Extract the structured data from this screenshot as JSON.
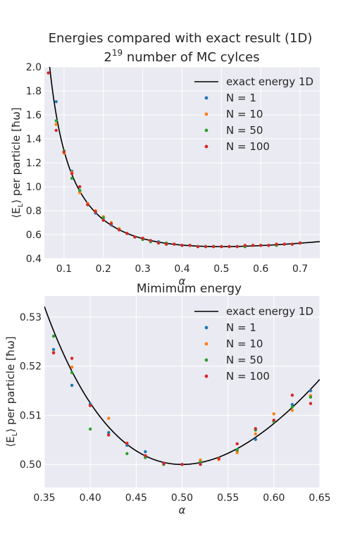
{
  "figure": {
    "title_line1": "Energies compared with exact result (1D)",
    "title_line2_base": "2",
    "title_line2_exp": "19",
    "title_line2_rest": " number of MC cylces"
  },
  "colors": {
    "exact": "#000000",
    "N = 1": "#1f77b4",
    "N = 10": "#ff7f0e",
    "N = 50": "#2ca02c",
    "N = 100": "#d62728",
    "axes_bg": "#eaeaf2",
    "grid": "#ffffff"
  },
  "chart_data": [
    {
      "type": "scatter",
      "title": "",
      "xlabel": "α",
      "ylabel": "⟨E_L⟩ per particle [ħω]",
      "xlim": [
        0.05,
        0.75
      ],
      "ylim": [
        0.4,
        2.0
      ],
      "xticks": [
        "0.1",
        "0.2",
        "0.3",
        "0.4",
        "0.5",
        "0.6",
        "0.7"
      ],
      "yticks": [
        "0.4",
        "0.6",
        "0.8",
        "1.0",
        "1.2",
        "1.4",
        "1.6",
        "1.8",
        "2.0"
      ],
      "grid": true,
      "legend_position": "top-right",
      "line_series": {
        "name": "exact energy 1D",
        "formula": "alpha/2 + 1/(8 alpha)"
      },
      "series": [
        {
          "name": "N = 1",
          "x": [
            0.08,
            0.12,
            0.14,
            0.16,
            0.18,
            0.2,
            0.22,
            0.24,
            0.26,
            0.28,
            0.3,
            0.32,
            0.34,
            0.36,
            0.38,
            0.4,
            0.42,
            0.44,
            0.46,
            0.48,
            0.5,
            0.52,
            0.54,
            0.56,
            0.58,
            0.6,
            0.62,
            0.64,
            0.66,
            0.68,
            0.7
          ],
          "y": [
            1.71,
            1.13,
            0.96,
            0.86,
            0.78,
            0.72,
            0.68,
            0.64,
            0.61,
            0.58,
            0.56,
            0.55,
            0.54,
            0.52,
            0.52,
            0.51,
            0.51,
            0.5,
            0.5,
            0.5,
            0.5,
            0.5,
            0.5,
            0.5,
            0.51,
            0.51,
            0.51,
            0.52,
            0.52,
            0.52,
            0.53
          ]
        },
        {
          "name": "N = 10",
          "x": [
            0.08,
            0.1,
            0.12,
            0.14,
            0.16,
            0.18,
            0.2,
            0.22,
            0.24,
            0.26,
            0.28,
            0.3,
            0.32,
            0.34,
            0.36,
            0.38,
            0.4,
            0.42,
            0.44,
            0.46,
            0.48,
            0.5,
            0.52,
            0.54,
            0.56,
            0.58,
            0.6,
            0.62,
            0.64,
            0.66,
            0.68,
            0.7
          ],
          "y": [
            1.52,
            1.28,
            1.12,
            0.95,
            0.86,
            0.8,
            0.75,
            0.7,
            0.65,
            0.61,
            0.58,
            0.57,
            0.55,
            0.53,
            0.52,
            0.52,
            0.51,
            0.51,
            0.5,
            0.5,
            0.5,
            0.5,
            0.5,
            0.5,
            0.5,
            0.51,
            0.51,
            0.51,
            0.52,
            0.52,
            0.52,
            0.53
          ]
        },
        {
          "name": "N = 50",
          "x": [
            0.08,
            0.1,
            0.12,
            0.14,
            0.16,
            0.18,
            0.2,
            0.22,
            0.24,
            0.26,
            0.28,
            0.3,
            0.32,
            0.34,
            0.36,
            0.38,
            0.4,
            0.42,
            0.44,
            0.46,
            0.48,
            0.5,
            0.52,
            0.54,
            0.56,
            0.58,
            0.6,
            0.62,
            0.64,
            0.66,
            0.68,
            0.7
          ],
          "y": [
            1.55,
            1.3,
            1.07,
            0.97,
            0.85,
            0.79,
            0.74,
            0.69,
            0.64,
            0.61,
            0.58,
            0.56,
            0.54,
            0.53,
            0.53,
            0.52,
            0.51,
            0.51,
            0.5,
            0.5,
            0.5,
            0.5,
            0.5,
            0.5,
            0.5,
            0.51,
            0.51,
            0.51,
            0.51,
            0.52,
            0.52,
            0.53
          ]
        },
        {
          "name": "N = 100",
          "x": [
            0.06,
            0.08,
            0.1,
            0.12,
            0.14,
            0.16,
            0.18,
            0.2,
            0.22,
            0.24,
            0.26,
            0.28,
            0.3,
            0.32,
            0.34,
            0.36,
            0.38,
            0.4,
            0.42,
            0.44,
            0.46,
            0.48,
            0.5,
            0.52,
            0.54,
            0.56,
            0.58,
            0.6,
            0.62,
            0.64,
            0.66,
            0.68,
            0.7
          ],
          "y": [
            1.95,
            1.47,
            1.29,
            1.11,
            1.0,
            0.85,
            0.79,
            0.72,
            0.69,
            0.64,
            0.61,
            0.58,
            0.57,
            0.55,
            0.53,
            0.52,
            0.52,
            0.51,
            0.51,
            0.5,
            0.5,
            0.5,
            0.5,
            0.5,
            0.5,
            0.51,
            0.51,
            0.51,
            0.51,
            0.52,
            0.52,
            0.52,
            0.53
          ]
        }
      ]
    },
    {
      "type": "scatter",
      "title": "Mimimum energy",
      "xlabel": "α",
      "ylabel": "⟨E_L⟩ per particle [ħω]",
      "xlim": [
        0.35,
        0.65
      ],
      "ylim": [
        0.4953,
        0.5343
      ],
      "xticks": [
        "0.35",
        "0.40",
        "0.45",
        "0.50",
        "0.55",
        "0.60",
        "0.65"
      ],
      "yticks": [
        "0.50",
        "0.51",
        "0.52",
        "0.53"
      ],
      "grid": true,
      "legend_position": "top-right",
      "line_series": {
        "name": "exact energy 1D",
        "formula": "alpha/2 + 1/(8 alpha)"
      },
      "series": [
        {
          "name": "N = 1",
          "x": [
            0.36,
            0.38,
            0.4,
            0.42,
            0.44,
            0.46,
            0.48,
            0.5,
            0.52,
            0.54,
            0.56,
            0.58,
            0.6,
            0.62,
            0.64
          ],
          "y": [
            0.5234,
            0.5161,
            0.5123,
            0.5065,
            0.5039,
            0.5026,
            0.5003,
            0.5,
            0.5006,
            0.5011,
            0.5028,
            0.5051,
            0.5089,
            0.5122,
            0.515
          ]
        },
        {
          "name": "N = 10",
          "x": [
            0.36,
            0.38,
            0.4,
            0.42,
            0.44,
            0.46,
            0.48,
            0.5,
            0.52,
            0.54,
            0.56,
            0.58,
            0.6,
            0.62,
            0.64
          ],
          "y": [
            0.5228,
            0.5198,
            0.512,
            0.5094,
            0.5043,
            0.5014,
            0.5002,
            0.5,
            0.5009,
            0.501,
            0.5024,
            0.5062,
            0.5103,
            0.511,
            0.514
          ]
        },
        {
          "name": "N = 50",
          "x": [
            0.36,
            0.38,
            0.4,
            0.42,
            0.44,
            0.46,
            0.48,
            0.5,
            0.52,
            0.54,
            0.56,
            0.58,
            0.6,
            0.62,
            0.64
          ],
          "y": [
            0.5261,
            0.5187,
            0.5072,
            0.506,
            0.5022,
            0.5014,
            0.5,
            0.5,
            0.5004,
            0.5013,
            0.503,
            0.507,
            0.5087,
            0.5117,
            0.5137
          ]
        },
        {
          "name": "N = 100",
          "x": [
            0.36,
            0.38,
            0.4,
            0.42,
            0.44,
            0.46,
            0.48,
            0.5,
            0.52,
            0.54,
            0.56,
            0.58,
            0.6,
            0.62,
            0.64
          ],
          "y": [
            0.5227,
            0.5216,
            0.512,
            0.506,
            0.5043,
            0.5018,
            0.5002,
            0.5,
            0.5,
            0.5012,
            0.5042,
            0.5073,
            0.509,
            0.5141,
            0.5124
          ]
        }
      ]
    }
  ]
}
